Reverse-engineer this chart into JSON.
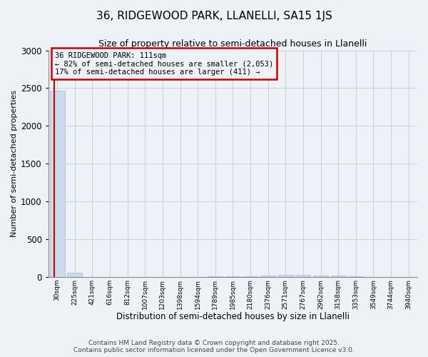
{
  "title_line1": "36, RIDGEWOOD PARK, LLANELLI, SA15 1JS",
  "title_line2": "Size of property relative to semi-detached houses in Llanelli",
  "xlabel": "Distribution of semi-detached houses by size in Llanelli",
  "ylabel": "Number of semi-detached properties",
  "annotation_title": "36 RIDGEWOOD PARK: 111sqm",
  "annotation_line2": "← 82% of semi-detached houses are smaller (2,053)",
  "annotation_line3": "17% of semi-detached houses are larger (411) →",
  "footer_line1": "Contains HM Land Registry data © Crown copyright and database right 2025.",
  "footer_line2": "Contains public sector information licensed under the Open Government Licence v3.0.",
  "bar_color": "#ccdaeb",
  "bar_edge_color": "#aabfda",
  "grid_color": "#c8d0d8",
  "annotation_box_color": "#cc0000",
  "vline_color": "#cc0000",
  "ylim": [
    0,
    3000
  ],
  "yticks": [
    0,
    500,
    1000,
    1500,
    2000,
    2500,
    3000
  ],
  "categories": [
    "30sqm",
    "225sqm",
    "421sqm",
    "616sqm",
    "812sqm",
    "1007sqm",
    "1203sqm",
    "1398sqm",
    "1594sqm",
    "1789sqm",
    "1985sqm",
    "2180sqm",
    "2376sqm",
    "2571sqm",
    "2767sqm",
    "2962sqm",
    "3158sqm",
    "3353sqm",
    "3549sqm",
    "3744sqm",
    "3940sqm"
  ],
  "values": [
    2464,
    60,
    1,
    1,
    1,
    1,
    1,
    2,
    3,
    5,
    8,
    12,
    18,
    25,
    30,
    22,
    15,
    8,
    4,
    2,
    1
  ],
  "vline_x": -0.18,
  "bg_color": "#eef2f7",
  "figwidth": 6.0,
  "figheight": 5.0,
  "dpi": 100
}
